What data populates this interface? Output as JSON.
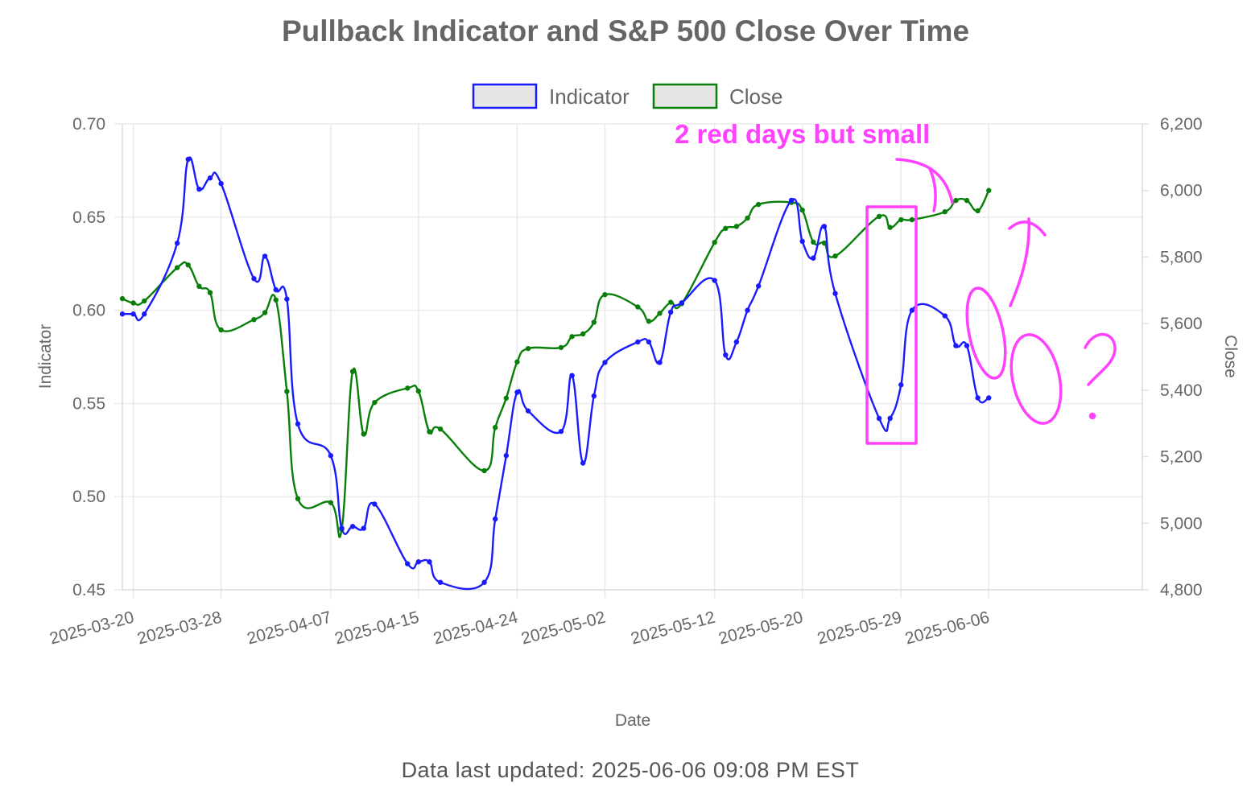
{
  "chart_data": {
    "type": "line",
    "title": "Pullback Indicator and S&P 500 Close Over Time",
    "xlabel": "Date",
    "ylabel_left": "Indicator",
    "ylabel_right": "Close",
    "x_ticks": [
      "2025-03-20",
      "2025-03-28",
      "2025-04-07",
      "2025-04-15",
      "2025-04-24",
      "2025-05-02",
      "2025-05-12",
      "2025-05-20",
      "2025-05-29",
      "2025-06-06"
    ],
    "y_left_ticks": [
      "0.70",
      "0.65",
      "0.60",
      "0.55",
      "0.50",
      "0.45"
    ],
    "y_right_ticks": [
      "6,200",
      "6,000",
      "5,800",
      "5,600",
      "5,400",
      "5,200",
      "5,000",
      "4,800"
    ],
    "y_left_range": [
      0.45,
      0.7
    ],
    "y_right_range": [
      4800,
      6200
    ],
    "legend_position": "top-center",
    "grid": true,
    "dates": [
      "2025-03-19",
      "2025-03-20",
      "2025-03-21",
      "2025-03-24",
      "2025-03-25",
      "2025-03-26",
      "2025-03-27",
      "2025-03-28",
      "2025-03-31",
      "2025-04-01",
      "2025-04-02",
      "2025-04-03",
      "2025-04-04",
      "2025-04-07",
      "2025-04-08",
      "2025-04-09",
      "2025-04-10",
      "2025-04-11",
      "2025-04-14",
      "2025-04-15",
      "2025-04-16",
      "2025-04-17",
      "2025-04-21",
      "2025-04-22",
      "2025-04-23",
      "2025-04-24",
      "2025-04-25",
      "2025-04-28",
      "2025-04-29",
      "2025-04-30",
      "2025-05-01",
      "2025-05-02",
      "2025-05-05",
      "2025-05-06",
      "2025-05-07",
      "2025-05-08",
      "2025-05-09",
      "2025-05-12",
      "2025-05-13",
      "2025-05-14",
      "2025-05-15",
      "2025-05-16",
      "2025-05-19",
      "2025-05-20",
      "2025-05-21",
      "2025-05-22",
      "2025-05-23",
      "2025-05-27",
      "2025-05-28",
      "2025-05-29",
      "2025-05-30",
      "2025-06-02",
      "2025-06-03",
      "2025-06-04",
      "2025-06-05",
      "2025-06-06"
    ],
    "series": [
      {
        "name": "Indicator",
        "color": "#1a1aff",
        "axis": "left",
        "values": [
          0.598,
          0.598,
          0.598,
          0.636,
          0.681,
          0.665,
          0.671,
          0.668,
          0.617,
          0.629,
          0.611,
          0.606,
          0.539,
          0.522,
          0.483,
          0.484,
          0.483,
          0.496,
          0.464,
          0.465,
          0.465,
          0.454,
          0.454,
          0.488,
          0.522,
          0.556,
          0.546,
          0.535,
          0.565,
          0.518,
          0.554,
          0.572,
          0.583,
          0.583,
          0.572,
          0.599,
          0.604,
          0.616,
          0.576,
          0.583,
          0.6,
          0.613,
          0.659,
          0.637,
          0.628,
          0.645,
          0.609,
          0.542,
          0.542,
          0.56,
          0.6,
          0.597,
          0.581,
          0.581,
          0.553,
          0.553
        ]
      },
      {
        "name": "Close",
        "color": "#087f08",
        "axis": "right",
        "values": [
          5675,
          5662,
          5668,
          5768,
          5776,
          5712,
          5693,
          5581,
          5612,
          5633,
          5671,
          5396,
          5074,
          5062,
          4982,
          5456,
          5268,
          5363,
          5406,
          5397,
          5275,
          5283,
          5158,
          5288,
          5376,
          5485,
          5525,
          5528,
          5561,
          5569,
          5604,
          5687,
          5650,
          5607,
          5631,
          5664,
          5660,
          5844,
          5886,
          5892,
          5917,
          5958,
          5964,
          5941,
          5845,
          5842,
          5803,
          5922,
          5889,
          5912,
          5912,
          5936,
          5970,
          5970,
          5939,
          6000
        ]
      }
    ]
  },
  "annotation": {
    "text": "2 red days but small",
    "question_mark": "?",
    "color": "#ff40ff"
  },
  "footer": "Data last updated: 2025-06-06 09:08 PM EST"
}
